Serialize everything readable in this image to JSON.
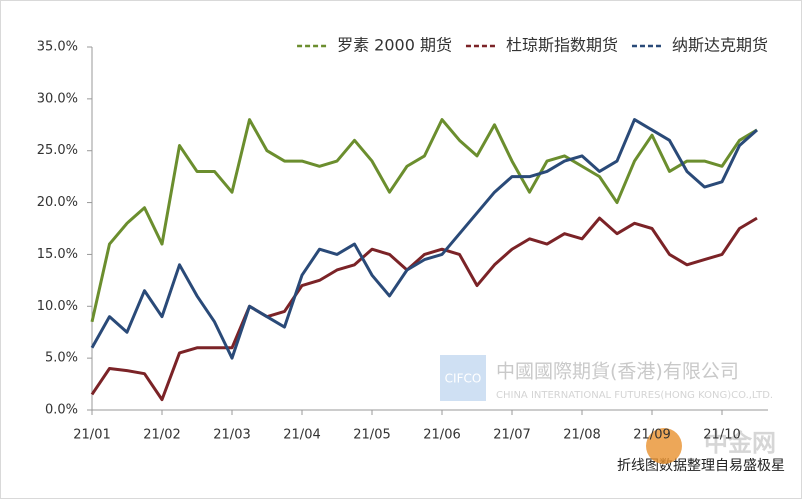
{
  "chart_data": {
    "type": "line",
    "categories": [
      "21/01",
      null,
      null,
      null,
      "21/02",
      null,
      null,
      null,
      "21/03",
      null,
      null,
      null,
      "21/04",
      null,
      null,
      null,
      "21/05",
      null,
      null,
      null,
      "21/06",
      null,
      null,
      null,
      "21/07",
      null,
      null,
      null,
      "21/08",
      null,
      null,
      null,
      "21/09",
      null,
      null,
      null,
      "21/10",
      null,
      null
    ],
    "series": [
      {
        "name": "罗素 2000 期货",
        "color": "#6b8e2e",
        "dash": true,
        "values": [
          8.5,
          16,
          18,
          19.5,
          16,
          25.5,
          23,
          23,
          21,
          28,
          25,
          24,
          24,
          23.5,
          24,
          26,
          24,
          21,
          23.5,
          24.5,
          28,
          26,
          24.5,
          27.5,
          24,
          21,
          24,
          24.5,
          23.5,
          22.5,
          20,
          24,
          26.5,
          23,
          24,
          24,
          23.5,
          26,
          27
        ]
      },
      {
        "name": "杜琼斯指数期货",
        "color": "#7b2327",
        "dash": true,
        "values": [
          1.5,
          4,
          3.8,
          3.5,
          1,
          5.5,
          6,
          6,
          6,
          10,
          9,
          9.5,
          12,
          12.5,
          13.5,
          14,
          15.5,
          15,
          13.5,
          15,
          15.5,
          15,
          12,
          14,
          15.5,
          16.5,
          16,
          17,
          16.5,
          18.5,
          17,
          18,
          17.5,
          15,
          14,
          14.5,
          15,
          17.5,
          18.5
        ]
      },
      {
        "name": "纳斯达克期货",
        "color": "#2a4a78",
        "dash": true,
        "values": [
          6,
          9,
          7.5,
          11.5,
          9,
          14,
          11,
          8.5,
          5,
          10,
          9,
          8,
          13,
          15.5,
          15,
          16,
          13,
          11,
          13.5,
          14.5,
          15,
          17,
          19,
          21,
          22.5,
          22.5,
          23,
          24,
          24.5,
          23,
          24,
          28,
          27,
          26,
          23,
          21.5,
          22,
          25.5,
          27
        ]
      }
    ],
    "ylim": [
      0,
      35
    ],
    "yticks": [
      {
        "value": 0,
        "label": "0.0%"
      },
      {
        "value": 5,
        "label": "5.0%"
      },
      {
        "value": 10,
        "label": "10.0%"
      },
      {
        "value": 15,
        "label": "15.0%"
      },
      {
        "value": 20,
        "label": "20.0%"
      },
      {
        "value": 25,
        "label": "25.0%"
      },
      {
        "value": 30,
        "label": "30.0%"
      },
      {
        "value": 35,
        "label": "35.0%"
      }
    ],
    "grid": false,
    "legend": "top-right",
    "watermark": {
      "logo": "CIFCO",
      "company": "中國國際期貨(香港)有限公司",
      "company_en": "CHINA INTERNATIONAL FUTURES(HONG KONG)CO.,LTD."
    },
    "caption": "折线图数据整理自易盛极星",
    "site": "中金网"
  }
}
